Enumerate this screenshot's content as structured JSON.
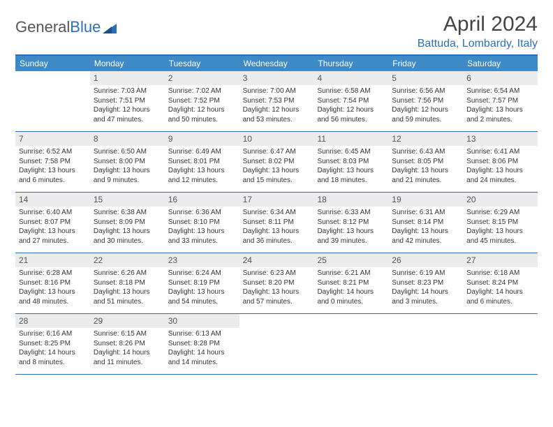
{
  "logo": {
    "text1": "General",
    "text2": "Blue"
  },
  "title": "April 2024",
  "location": "Battuda, Lombardy, Italy",
  "weekdays": [
    "Sunday",
    "Monday",
    "Tuesday",
    "Wednesday",
    "Thursday",
    "Friday",
    "Saturday"
  ],
  "colors": {
    "header_bg": "#3d8ac7",
    "border": "#2d6fb5",
    "daynum_bg": "#ececec",
    "location": "#2d6fb5"
  },
  "weeks": [
    [
      null,
      {
        "n": "1",
        "sr": "7:03 AM",
        "ss": "7:51 PM",
        "dl": "12 hours and 47 minutes."
      },
      {
        "n": "2",
        "sr": "7:02 AM",
        "ss": "7:52 PM",
        "dl": "12 hours and 50 minutes."
      },
      {
        "n": "3",
        "sr": "7:00 AM",
        "ss": "7:53 PM",
        "dl": "12 hours and 53 minutes."
      },
      {
        "n": "4",
        "sr": "6:58 AM",
        "ss": "7:54 PM",
        "dl": "12 hours and 56 minutes."
      },
      {
        "n": "5",
        "sr": "6:56 AM",
        "ss": "7:56 PM",
        "dl": "12 hours and 59 minutes."
      },
      {
        "n": "6",
        "sr": "6:54 AM",
        "ss": "7:57 PM",
        "dl": "13 hours and 2 minutes."
      }
    ],
    [
      {
        "n": "7",
        "sr": "6:52 AM",
        "ss": "7:58 PM",
        "dl": "13 hours and 6 minutes."
      },
      {
        "n": "8",
        "sr": "6:50 AM",
        "ss": "8:00 PM",
        "dl": "13 hours and 9 minutes."
      },
      {
        "n": "9",
        "sr": "6:49 AM",
        "ss": "8:01 PM",
        "dl": "13 hours and 12 minutes."
      },
      {
        "n": "10",
        "sr": "6:47 AM",
        "ss": "8:02 PM",
        "dl": "13 hours and 15 minutes."
      },
      {
        "n": "11",
        "sr": "6:45 AM",
        "ss": "8:03 PM",
        "dl": "13 hours and 18 minutes."
      },
      {
        "n": "12",
        "sr": "6:43 AM",
        "ss": "8:05 PM",
        "dl": "13 hours and 21 minutes."
      },
      {
        "n": "13",
        "sr": "6:41 AM",
        "ss": "8:06 PM",
        "dl": "13 hours and 24 minutes."
      }
    ],
    [
      {
        "n": "14",
        "sr": "6:40 AM",
        "ss": "8:07 PM",
        "dl": "13 hours and 27 minutes."
      },
      {
        "n": "15",
        "sr": "6:38 AM",
        "ss": "8:09 PM",
        "dl": "13 hours and 30 minutes."
      },
      {
        "n": "16",
        "sr": "6:36 AM",
        "ss": "8:10 PM",
        "dl": "13 hours and 33 minutes."
      },
      {
        "n": "17",
        "sr": "6:34 AM",
        "ss": "8:11 PM",
        "dl": "13 hours and 36 minutes."
      },
      {
        "n": "18",
        "sr": "6:33 AM",
        "ss": "8:12 PM",
        "dl": "13 hours and 39 minutes."
      },
      {
        "n": "19",
        "sr": "6:31 AM",
        "ss": "8:14 PM",
        "dl": "13 hours and 42 minutes."
      },
      {
        "n": "20",
        "sr": "6:29 AM",
        "ss": "8:15 PM",
        "dl": "13 hours and 45 minutes."
      }
    ],
    [
      {
        "n": "21",
        "sr": "6:28 AM",
        "ss": "8:16 PM",
        "dl": "13 hours and 48 minutes."
      },
      {
        "n": "22",
        "sr": "6:26 AM",
        "ss": "8:18 PM",
        "dl": "13 hours and 51 minutes."
      },
      {
        "n": "23",
        "sr": "6:24 AM",
        "ss": "8:19 PM",
        "dl": "13 hours and 54 minutes."
      },
      {
        "n": "24",
        "sr": "6:23 AM",
        "ss": "8:20 PM",
        "dl": "13 hours and 57 minutes."
      },
      {
        "n": "25",
        "sr": "6:21 AM",
        "ss": "8:21 PM",
        "dl": "14 hours and 0 minutes."
      },
      {
        "n": "26",
        "sr": "6:19 AM",
        "ss": "8:23 PM",
        "dl": "14 hours and 3 minutes."
      },
      {
        "n": "27",
        "sr": "6:18 AM",
        "ss": "8:24 PM",
        "dl": "14 hours and 6 minutes."
      }
    ],
    [
      {
        "n": "28",
        "sr": "6:16 AM",
        "ss": "8:25 PM",
        "dl": "14 hours and 8 minutes."
      },
      {
        "n": "29",
        "sr": "6:15 AM",
        "ss": "8:26 PM",
        "dl": "14 hours and 11 minutes."
      },
      {
        "n": "30",
        "sr": "6:13 AM",
        "ss": "8:28 PM",
        "dl": "14 hours and 14 minutes."
      },
      null,
      null,
      null,
      null
    ]
  ]
}
